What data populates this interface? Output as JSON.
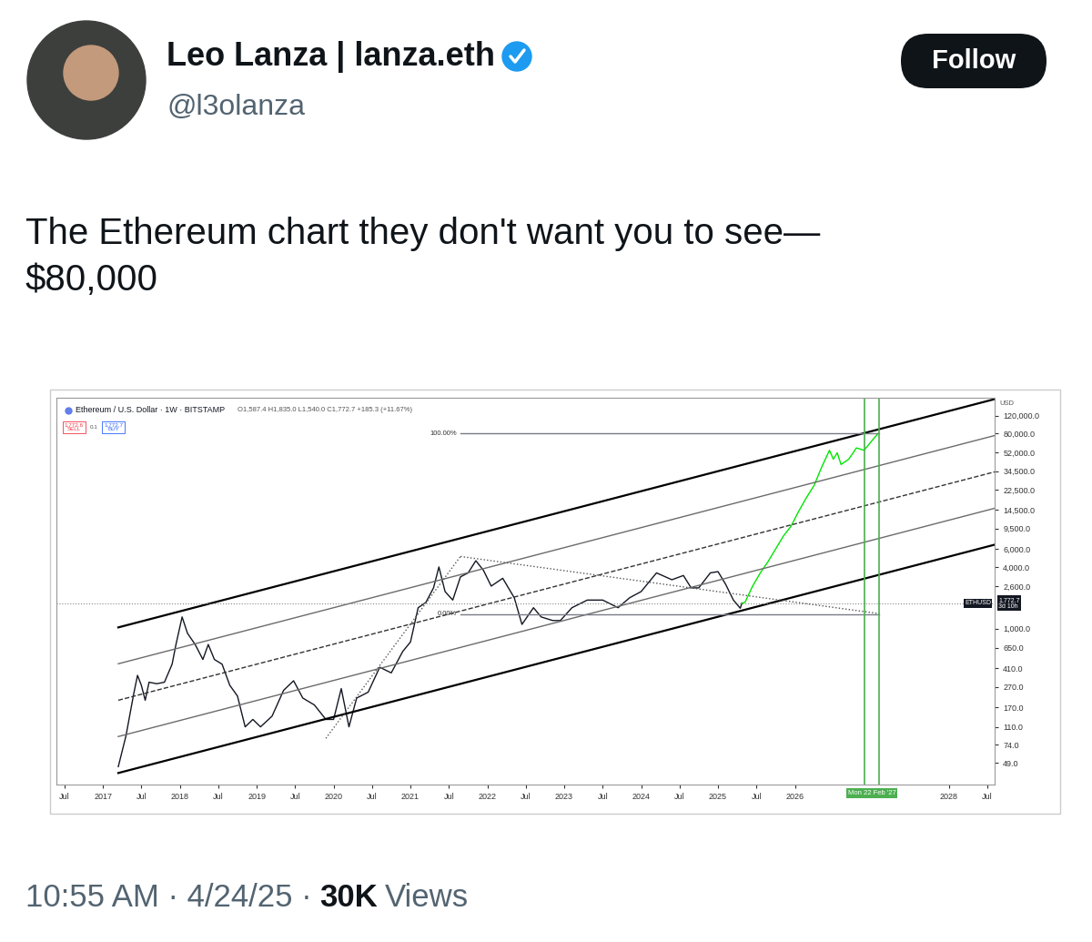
{
  "tweet": {
    "name": "Leo Lanza | lanza.eth",
    "handle": "@l3olanza",
    "button": "Follow",
    "text": "The Ethereum chart they don't want you to see—\n$80,000",
    "footer": "10:55 AM · 4/24/25 ·",
    "views": "30K",
    "views_label": "Views"
  },
  "chart_data": {
    "type": "line",
    "title": "Ethereum / U.S. Dollar · 1W · BITSTAMP",
    "subtitle": "O1,587.4 H1,835.0 L1,540.0 C1,772.7 +185.3 (+11.67%)",
    "y_label": "USD",
    "trade_buttons": {
      "sell_price": "1,772.6",
      "sell": "SELL",
      "spread": "0.1",
      "buy_price": "1,772.7",
      "buy": "BUY"
    },
    "log": "y",
    "grid": false,
    "xlim": [
      2016.4,
      2028.6
    ],
    "xticks": [
      {
        "value": 2016.5,
        "label": "Jul"
      },
      2017,
      {
        "value": 2017.5,
        "label": "Jul"
      },
      2018,
      {
        "value": 2018.5,
        "label": "Jul"
      },
      2019,
      {
        "value": 2019.5,
        "label": "Jul"
      },
      2020,
      {
        "value": 2020.5,
        "label": "Jul"
      },
      2021,
      {
        "value": 2021.5,
        "label": "Jul"
      },
      2022,
      {
        "value": 2022.5,
        "label": "Jul"
      },
      2023,
      {
        "value": 2023.5,
        "label": "Jul"
      },
      2024,
      {
        "value": 2024.5,
        "label": "Jul"
      },
      2025,
      {
        "value": 2025.5,
        "label": "Jul"
      },
      2026,
      2028,
      {
        "value": 2028.5,
        "label": "Jul"
      }
    ],
    "ylim": [
      30,
      180000
    ],
    "yticks": [
      {
        "value": 49,
        "label": "49.0"
      },
      {
        "value": 74,
        "label": "74.0"
      },
      {
        "value": 110,
        "label": "110.0"
      },
      {
        "value": 170,
        "label": "170.0"
      },
      {
        "value": 270,
        "label": "270.0"
      },
      {
        "value": 410,
        "label": "410.0"
      },
      {
        "value": 650,
        "label": "650.0"
      },
      {
        "value": 1000,
        "label": "1,000.0"
      },
      {
        "value": 2600,
        "label": "2,600.0"
      },
      {
        "value": 4000,
        "label": "4,000.0"
      },
      {
        "value": 6000,
        "label": "6,000.0"
      },
      {
        "value": 9500,
        "label": "9,500.0"
      },
      {
        "value": 14500,
        "label": "14,500.0"
      },
      {
        "value": 22500,
        "label": "22,500.0"
      },
      {
        "value": 34500,
        "label": "34,500.0"
      },
      {
        "value": 52000,
        "label": "52,000.0"
      },
      {
        "value": 80000,
        "label": "80,000.0"
      },
      {
        "value": 120000,
        "label": "120,000.0"
      }
    ],
    "series": [
      {
        "color": "#131722",
        "line_style": "solid",
        "x": [
          2017.2,
          2017.3,
          2017.4,
          2017.45,
          2017.5,
          2017.55,
          2017.6,
          2017.7,
          2017.8,
          2017.9,
          2017.95,
          2018.03,
          2018.1,
          2018.2,
          2018.3,
          2018.37,
          2018.45,
          2018.55,
          2018.65,
          2018.75,
          2018.85,
          2018.95,
          2019.05,
          2019.2,
          2019.35,
          2019.48,
          2019.6,
          2019.75,
          2019.9,
          2020.0,
          2020.1,
          2020.2,
          2020.3,
          2020.45,
          2020.6,
          2020.75,
          2020.9,
          2021.0,
          2021.1,
          2021.2,
          2021.3,
          2021.37,
          2021.45,
          2021.55,
          2021.65,
          2021.75,
          2021.85,
          2021.95,
          2022.05,
          2022.2,
          2022.35,
          2022.45,
          2022.6,
          2022.7,
          2022.85,
          2022.95,
          2023.1,
          2023.3,
          2023.5,
          2023.7,
          2023.85,
          2024.0,
          2024.2,
          2024.4,
          2024.55,
          2024.65,
          2024.75,
          2024.9,
          2025.0,
          2025.1,
          2025.2,
          2025.29,
          2025.31
        ],
        "values": [
          45,
          90,
          230,
          350,
          280,
          200,
          300,
          290,
          300,
          450,
          700,
          1300,
          900,
          700,
          500,
          700,
          500,
          450,
          280,
          220,
          110,
          130,
          110,
          140,
          250,
          310,
          210,
          180,
          130,
          130,
          260,
          110,
          210,
          240,
          420,
          370,
          600,
          740,
          1600,
          1800,
          2500,
          4000,
          2300,
          1900,
          3200,
          3500,
          4600,
          3700,
          2600,
          3100,
          2000,
          1100,
          1600,
          1300,
          1200,
          1200,
          1600,
          1900,
          1900,
          1600,
          2000,
          2300,
          3500,
          3000,
          3300,
          2500,
          2500,
          3500,
          3600,
          2700,
          1900,
          1580,
          1772.7
        ]
      },
      {
        "color": "#00e600",
        "line_style": "solid",
        "x": [
          2025.31,
          2025.35,
          2025.45,
          2025.55,
          2025.65,
          2025.75,
          2025.85,
          2025.95,
          2026.05,
          2026.15,
          2026.25,
          2026.35,
          2026.45,
          2026.5,
          2026.55,
          2026.6,
          2026.7,
          2026.8,
          2026.9,
          2027.0,
          2027.08
        ],
        "values": [
          1772.7,
          1800,
          2600,
          3500,
          4500,
          6000,
          8000,
          10000,
          14000,
          19000,
          25000,
          38000,
          55000,
          45000,
          52000,
          40000,
          45000,
          58000,
          55000,
          68000,
          80000
        ]
      },
      {
        "color": "#000000",
        "line_style": "solid",
        "x": [
          2017.2,
          2028.6
        ],
        "values": [
          1028,
          173800
        ]
      },
      {
        "color": "#6b6b6b",
        "line_style": "solid",
        "x": [
          2017.2,
          2028.6
        ],
        "values": [
          454,
          76700
        ]
      },
      {
        "color": "#333333",
        "line_style": "dashed",
        "x": [
          2017.2,
          2028.6
        ],
        "values": [
          200,
          33900
        ]
      },
      {
        "color": "#6b6b6b",
        "line_style": "solid",
        "x": [
          2017.2,
          2028.6
        ],
        "values": [
          88.5,
          14960
        ]
      },
      {
        "color": "#000000",
        "line_style": "solid",
        "x": [
          2017.2,
          2028.6
        ],
        "values": [
          39,
          6600
        ]
      },
      {
        "color": "#787b86",
        "line_style": "solid",
        "x": [
          2021.65,
          2027.1
        ],
        "values": [
          80000,
          80000
        ]
      },
      {
        "color": "#787b86",
        "line_style": "solid",
        "x": [
          2021.65,
          2027.1
        ],
        "values": [
          1385,
          1385
        ]
      },
      {
        "color": "#555555",
        "line_style": "dotted",
        "x": [
          2021.65,
          2027.1
        ],
        "values": [
          5060,
          1400
        ]
      },
      {
        "color": "#555555",
        "line_style": "dotted",
        "x": [
          2019.9,
          2021.65
        ],
        "values": [
          85,
          5060
        ]
      }
    ],
    "annotations": [
      {
        "text": "100.00%",
        "x": 2021.6,
        "y": 80000
      },
      {
        "text": "0.00%",
        "x": 2021.6,
        "y": 1385
      }
    ],
    "vertical_lines": {
      "x": [
        2026.9,
        2027.1
      ],
      "color": "#4caf50"
    },
    "date_label": "Mon 22 Feb '27",
    "last_price": {
      "value": 1772.7,
      "label": "ETHUSD",
      "value_label": "1,772.7",
      "countdown": "3d 10h"
    }
  }
}
